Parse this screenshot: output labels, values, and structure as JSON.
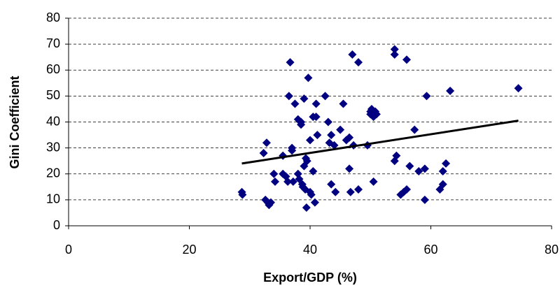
{
  "chart_data": {
    "type": "scatter",
    "x_label": "Export/GDP (%)",
    "y_label": "Gini Coefficient",
    "xlim": [
      0,
      80
    ],
    "xticks": [
      0,
      20,
      40,
      60,
      80
    ],
    "ylim": [
      0,
      80
    ],
    "yticks": [
      0,
      10,
      20,
      30,
      40,
      50,
      60,
      70,
      80
    ],
    "grid": true,
    "color": "#000080",
    "x": [
      28.7,
      28.8,
      32.3,
      32.8,
      32.6,
      33,
      33.2,
      33.5,
      34,
      34.2,
      35.5,
      35.5,
      36,
      36.3,
      36.5,
      36.7,
      37,
      37,
      37.2,
      37.5,
      38,
      38,
      38.2,
      38.5,
      38.5,
      38.7,
      38.8,
      39,
      39,
      39.2,
      39.3,
      39.4,
      39.5,
      39.7,
      40,
      40,
      40.2,
      40.5,
      40.5,
      40.8,
      41,
      41,
      41.2,
      42.5,
      43,
      43.2,
      43.5,
      43.5,
      44,
      44.2,
      45,
      45.5,
      46,
      46.5,
      46.5,
      46.7,
      47,
      47.2,
      48,
      48,
      49.5,
      50,
      50,
      50.2,
      50.5,
      50.5,
      50.8,
      51,
      54,
      54,
      54,
      54.3,
      55,
      55.5,
      56,
      56,
      56.5,
      57.3,
      58,
      59,
      59,
      59.3,
      61.5,
      62,
      62,
      62.5,
      63.2,
      74.5
    ],
    "values": [
      13,
      12,
      28,
      32,
      10,
      9,
      8,
      9,
      20,
      17,
      27,
      20,
      19,
      17,
      50,
      63,
      30,
      29,
      17,
      47,
      41,
      20,
      18,
      40,
      39,
      16,
      15,
      49,
      23,
      14,
      26,
      7,
      25,
      57,
      33,
      13,
      12,
      42,
      21,
      9,
      47,
      42,
      35,
      50,
      40,
      32,
      35,
      16,
      31,
      13,
      37,
      47,
      33,
      34,
      22,
      13,
      66,
      31,
      63,
      14,
      31,
      44,
      43,
      45,
      42,
      17,
      44,
      43,
      68,
      66,
      25,
      27,
      12,
      13,
      64,
      14,
      23,
      37,
      21,
      22,
      10,
      50,
      14,
      16,
      21,
      24,
      52,
      53
    ],
    "trendline": {
      "x": [
        28.7,
        74.5
      ],
      "values": [
        24,
        40.5
      ],
      "color": "#000000"
    }
  }
}
